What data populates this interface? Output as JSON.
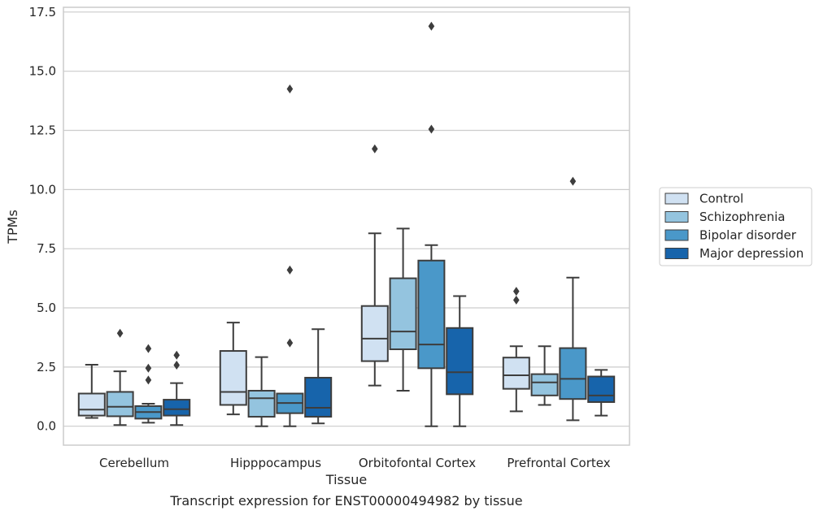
{
  "caption": "Transcript expression for ENST00000494982 by tissue",
  "chart_data": {
    "type": "box",
    "xlabel": "Tissue",
    "ylabel": "TPMs",
    "ylim": [
      -0.8,
      17.7
    ],
    "yticks": [
      "0.0",
      "2.5",
      "5.0",
      "7.5",
      "10.0",
      "12.5",
      "15.0",
      "17.5"
    ],
    "ytick_values": [
      0,
      2.5,
      5,
      7.5,
      10,
      12.5,
      15,
      17.5
    ],
    "grid": "horizontal",
    "legend_position": "right",
    "categories": [
      "Cerebellum",
      "Hipppocampus",
      "Orbitofontal Cortex",
      "Prefrontal Cortex"
    ],
    "series": [
      {
        "name": "Control",
        "color": "#d0e1f2",
        "boxes": [
          {
            "whisker_low": 0.35,
            "q1": 0.45,
            "median": 0.7,
            "q3": 1.38,
            "whisker_high": 2.6,
            "outliers": []
          },
          {
            "whisker_low": 0.5,
            "q1": 0.9,
            "median": 1.45,
            "q3": 3.18,
            "whisker_high": 4.38,
            "outliers": []
          },
          {
            "whisker_low": 1.72,
            "q1": 2.75,
            "median": 3.7,
            "q3": 5.08,
            "whisker_high": 8.15,
            "outliers": [
              11.72
            ]
          },
          {
            "whisker_low": 0.63,
            "q1": 1.58,
            "median": 2.15,
            "q3": 2.9,
            "whisker_high": 3.38,
            "outliers": [
              5.33,
              5.7
            ]
          }
        ]
      },
      {
        "name": "Schizophrenia",
        "color": "#94c4df",
        "boxes": [
          {
            "whisker_low": 0.05,
            "q1": 0.42,
            "median": 0.82,
            "q3": 1.45,
            "whisker_high": 2.32,
            "outliers": [
              3.93
            ]
          },
          {
            "whisker_low": 0.0,
            "q1": 0.4,
            "median": 1.18,
            "q3": 1.5,
            "whisker_high": 2.92,
            "outliers": []
          },
          {
            "whisker_low": 1.5,
            "q1": 3.25,
            "median": 4.0,
            "q3": 6.25,
            "whisker_high": 8.35,
            "outliers": []
          },
          {
            "whisker_low": 0.9,
            "q1": 1.3,
            "median": 1.85,
            "q3": 2.2,
            "whisker_high": 3.38,
            "outliers": []
          }
        ]
      },
      {
        "name": "Bipolar disorder",
        "color": "#4a98c9",
        "boxes": [
          {
            "whisker_low": 0.15,
            "q1": 0.32,
            "median": 0.6,
            "q3": 0.85,
            "whisker_high": 0.95,
            "outliers": [
              1.95,
              2.45,
              3.28
            ]
          },
          {
            "whisker_low": 0.0,
            "q1": 0.55,
            "median": 0.98,
            "q3": 1.38,
            "whisker_high": 1.38,
            "outliers": [
              3.52,
              6.6,
              14.25
            ]
          },
          {
            "whisker_low": 0.0,
            "q1": 2.45,
            "median": 3.45,
            "q3": 7.0,
            "whisker_high": 7.65,
            "outliers": [
              12.55,
              16.9
            ]
          },
          {
            "whisker_low": 0.25,
            "q1": 1.15,
            "median": 2.0,
            "q3": 3.3,
            "whisker_high": 6.28,
            "outliers": [
              10.35
            ]
          }
        ]
      },
      {
        "name": "Major depression",
        "color": "#1764ab",
        "boxes": [
          {
            "whisker_low": 0.05,
            "q1": 0.45,
            "median": 0.72,
            "q3": 1.12,
            "whisker_high": 1.82,
            "outliers": [
              2.58,
              3.0
            ]
          },
          {
            "whisker_low": 0.12,
            "q1": 0.4,
            "median": 0.78,
            "q3": 2.05,
            "whisker_high": 4.1,
            "outliers": []
          },
          {
            "whisker_low": 0.0,
            "q1": 1.35,
            "median": 2.28,
            "q3": 4.15,
            "whisker_high": 5.5,
            "outliers": []
          },
          {
            "whisker_low": 0.45,
            "q1": 1.02,
            "median": 1.3,
            "q3": 2.1,
            "whisker_high": 2.38,
            "outliers": []
          }
        ]
      }
    ]
  }
}
